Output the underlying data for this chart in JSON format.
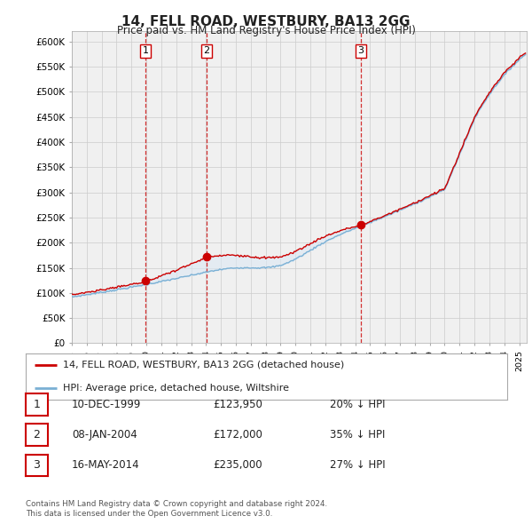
{
  "title": "14, FELL ROAD, WESTBURY, BA13 2GG",
  "subtitle": "Price paid vs. HM Land Registry's House Price Index (HPI)",
  "ylim": [
    0,
    620000
  ],
  "yticks": [
    0,
    50000,
    100000,
    150000,
    200000,
    250000,
    300000,
    350000,
    400000,
    450000,
    500000,
    550000,
    600000
  ],
  "ytick_labels": [
    "£0",
    "£50K",
    "£100K",
    "£150K",
    "£200K",
    "£250K",
    "£300K",
    "£350K",
    "£400K",
    "£450K",
    "£500K",
    "£550K",
    "£600K"
  ],
  "legend_line1": "14, FELL ROAD, WESTBURY, BA13 2GG (detached house)",
  "legend_line2": "HPI: Average price, detached house, Wiltshire",
  "line_color_red": "#cc0000",
  "line_color_blue": "#7ab0d4",
  "fill_color_blue": "#dce9f5",
  "vline_color": "#cc0000",
  "table_rows": [
    {
      "num": "1",
      "date": "10-DEC-1999",
      "price": "£123,950",
      "pct": "20% ↓ HPI"
    },
    {
      "num": "2",
      "date": "08-JAN-2004",
      "price": "£172,000",
      "pct": "35% ↓ HPI"
    },
    {
      "num": "3",
      "date": "16-MAY-2014",
      "price": "£235,000",
      "pct": "27% ↓ HPI"
    }
  ],
  "footnote1": "Contains HM Land Registry data © Crown copyright and database right 2024.",
  "footnote2": "This data is licensed under the Open Government Licence v3.0.",
  "sale_dates_float": [
    1999.94,
    2004.03,
    2014.37
  ],
  "sale_prices": [
    123950,
    172000,
    235000
  ],
  "background_color": "#ffffff",
  "grid_color": "#cccccc",
  "plot_bg": "#f0f0f0"
}
